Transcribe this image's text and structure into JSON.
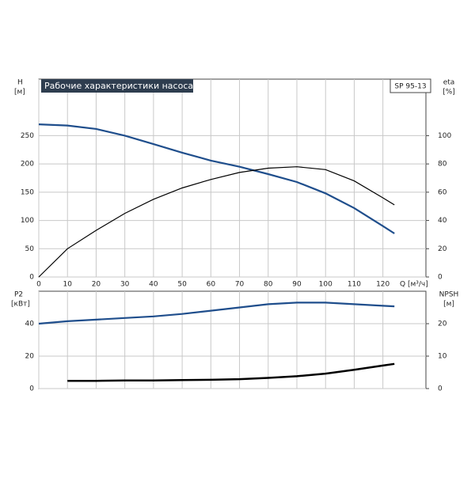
{
  "chart_data": [
    {
      "type": "line",
      "title": "Рабочие характеристики насоса",
      "model": "SP 95-13",
      "xlabel": "Q [м³/ч]",
      "ylabel": "H",
      "yunit": "[м]",
      "y2label": "eta",
      "y2unit": "[%]",
      "x": [
        0,
        10,
        20,
        30,
        40,
        50,
        60,
        70,
        80,
        90,
        100,
        110,
        120,
        124
      ],
      "xlim": [
        0,
        135
      ],
      "xticks": [
        0,
        10,
        20,
        30,
        40,
        50,
        60,
        70,
        80,
        90,
        100,
        110,
        120
      ],
      "ylim": [
        0,
        350
      ],
      "yticks": [
        0,
        50,
        100,
        150,
        200,
        250
      ],
      "y2lim": [
        0,
        140
      ],
      "y2ticks": [
        0,
        20,
        40,
        60,
        80,
        100
      ],
      "grid": true,
      "series": [
        {
          "name": "H",
          "color": "#1f4e8c",
          "values": [
            270,
            268,
            262,
            250,
            235,
            220,
            206,
            195,
            182,
            168,
            148,
            122,
            90,
            77
          ]
        },
        {
          "name": "eta",
          "color": "#000000",
          "axis": "y2",
          "values": [
            0,
            20,
            33,
            45,
            55,
            63,
            69,
            74,
            77,
            78,
            76,
            68,
            56,
            51
          ]
        }
      ]
    },
    {
      "type": "line",
      "ylabel": "P2",
      "yunit": "[кВт]",
      "y2label": "NPSH",
      "y2unit": "[м]",
      "x": [
        0,
        10,
        20,
        30,
        40,
        50,
        60,
        70,
        80,
        90,
        100,
        110,
        120,
        124
      ],
      "xlim": [
        0,
        135
      ],
      "xticks": [
        0,
        10,
        20,
        30,
        40,
        50,
        60,
        70,
        80,
        90,
        100,
        110,
        120
      ],
      "xtick_labels": false,
      "ylim": [
        0,
        60
      ],
      "yticks": [
        0,
        20,
        40
      ],
      "y2lim": [
        0,
        30
      ],
      "y2ticks": [
        0,
        10,
        20
      ],
      "grid": true,
      "series": [
        {
          "name": "P2",
          "color": "#1f4e8c",
          "values": [
            40,
            41.5,
            42.5,
            43.5,
            44.5,
            46,
            48,
            50,
            52,
            53,
            53,
            52,
            51,
            50.7
          ]
        },
        {
          "name": "NPSH",
          "color": "#000000",
          "axis": "y2",
          "values": [
            null,
            2.4,
            2.4,
            2.5,
            2.5,
            2.6,
            2.7,
            2.9,
            3.3,
            3.8,
            4.6,
            5.8,
            7.1,
            7.6
          ]
        }
      ]
    }
  ]
}
